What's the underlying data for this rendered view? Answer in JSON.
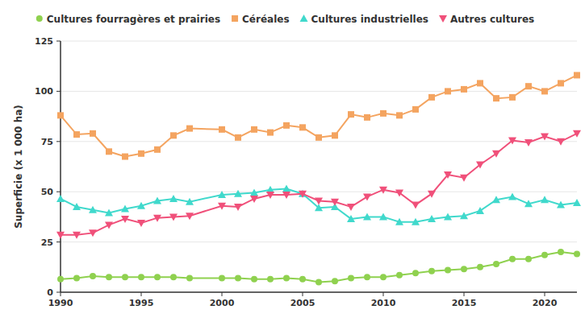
{
  "chart_data": {
    "type": "line",
    "y_label": "Superficie (x 1 000 ha)",
    "x": [
      1990,
      1991,
      1992,
      1993,
      1994,
      1995,
      1996,
      1997,
      1998,
      2000,
      2001,
      2002,
      2003,
      2004,
      2005,
      2006,
      2007,
      2008,
      2009,
      2010,
      2011,
      2012,
      2013,
      2014,
      2015,
      2016,
      2017,
      2018,
      2019,
      2020,
      2021,
      2022
    ],
    "xlim": [
      1990,
      2022
    ],
    "xticks": [
      1990,
      1995,
      2000,
      2005,
      2010,
      2015,
      2020
    ],
    "ylim": [
      0,
      125
    ],
    "yticks": [
      0,
      25,
      50,
      75,
      100,
      125
    ],
    "grid": true,
    "legend": "top",
    "series": [
      {
        "name": "Cultures fourragères et prairies",
        "color": "#8fd14f",
        "marker": "circle",
        "values": [
          6.5,
          7,
          8,
          7.5,
          7.5,
          7.5,
          7.5,
          7.5,
          7,
          7,
          7,
          6.5,
          6.5,
          7,
          6.5,
          5,
          5.5,
          7,
          7.5,
          7.5,
          8.5,
          9.5,
          10.5,
          11,
          11.5,
          12.5,
          14,
          16.5,
          16.5,
          18.5,
          20,
          19
        ]
      },
      {
        "name": "Céréales",
        "color": "#f4a460",
        "marker": "square",
        "values": [
          88,
          78.5,
          79,
          70,
          67.5,
          69,
          71,
          78,
          81.5,
          81,
          77,
          81,
          79.5,
          83,
          82,
          77,
          78,
          88.5,
          87,
          89,
          88,
          91,
          97,
          100,
          101,
          104,
          96.5,
          97,
          102.5,
          100,
          104,
          108
        ]
      },
      {
        "name": "Cultures industrielles",
        "color": "#40d9cc",
        "marker": "triangle-up",
        "values": [
          46.5,
          42.5,
          41,
          39.5,
          41.5,
          43,
          45.5,
          46.5,
          45,
          48.5,
          49,
          49.5,
          51,
          51.5,
          49,
          42,
          42.5,
          36.5,
          37.5,
          37.5,
          35,
          35,
          36.5,
          37.5,
          38,
          40.5,
          46,
          47.5,
          44,
          46,
          43.5,
          44.5
        ]
      },
      {
        "name": "Autres cultures",
        "color": "#f0507a",
        "marker": "triangle-down",
        "values": [
          28.5,
          28.5,
          29.5,
          33.5,
          36.5,
          34.5,
          37,
          37.5,
          38,
          43,
          42.5,
          46.5,
          48.5,
          48.5,
          49,
          45.5,
          45,
          42.5,
          47.5,
          51,
          49.5,
          43.5,
          49,
          58.5,
          57,
          63.5,
          69,
          75.5,
          74.5,
          77.5,
          75,
          79
        ]
      }
    ]
  }
}
